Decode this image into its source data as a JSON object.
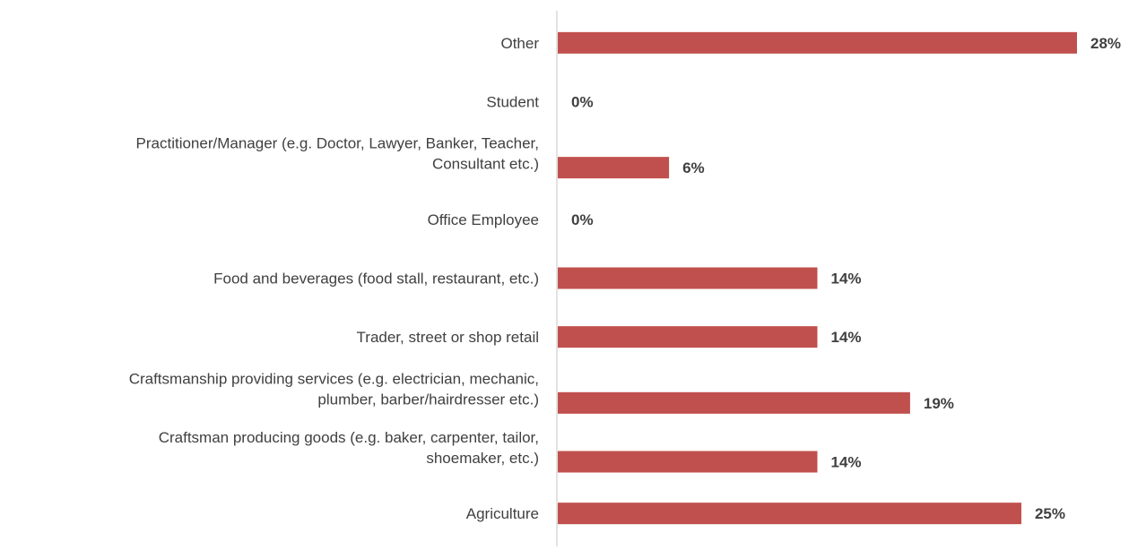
{
  "chart_data": {
    "type": "bar",
    "orientation": "horizontal",
    "categories": [
      "Other",
      "Student",
      "Practitioner/Manager (e.g. Doctor, Lawyer, Banker, Teacher, Consultant etc.)",
      "Office Employee",
      "Food and beverages (food stall, restaurant, etc.)",
      "Trader, street or shop retail",
      "Craftsmanship providing services (e.g. electrician, mechanic, plumber, barber/hairdresser etc.)",
      "Craftsman producing goods (e.g. baker, carpenter, tailor, shoemaker, etc.)",
      "Agriculture"
    ],
    "category_lines": [
      [
        "Other"
      ],
      [
        "Student"
      ],
      [
        "Practitioner/Manager (e.g. Doctor, Lawyer, Banker, Teacher,",
        "Consultant etc.)"
      ],
      [
        "Office Employee"
      ],
      [
        "Food and beverages (food stall, restaurant, etc.)"
      ],
      [
        "Trader, street or shop retail"
      ],
      [
        "Craftsmanship providing services (e.g. electrician, mechanic,",
        "plumber, barber/hairdresser etc.)"
      ],
      [
        "Craftsman producing goods (e.g. baker, carpenter, tailor,",
        "shoemaker, etc.)"
      ],
      [
        "Agriculture"
      ]
    ],
    "values": [
      28,
      0,
      6,
      0,
      14,
      14,
      19,
      14,
      25
    ],
    "value_labels": [
      "28%",
      "0%",
      "6%",
      "0%",
      "14%",
      "14%",
      "19%",
      "14%",
      "25%"
    ],
    "unit": "%",
    "xlim": [
      0,
      28
    ],
    "grid": false,
    "legend": "none",
    "colors": {
      "bar": "#C0504D",
      "axis": "#D9D9D9",
      "text": "#404040"
    }
  }
}
